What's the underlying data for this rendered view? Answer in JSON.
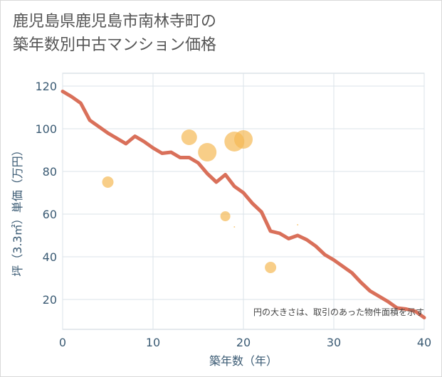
{
  "title_line1": "鹿児島県鹿児島市南林寺町の",
  "title_line2": "築年数別中古マンション価格",
  "chart_data": {
    "type": "scatter",
    "xlabel": "築年数（年）",
    "ylabel": "坪（3.3㎡）単価（万円）",
    "xlim": [
      0,
      40
    ],
    "ylim": [
      6,
      126
    ],
    "x_ticks": [
      "0",
      "10",
      "20",
      "30",
      "40"
    ],
    "y_ticks": [
      "20",
      "40",
      "60",
      "80",
      "100",
      "120"
    ],
    "x_tick_values": [
      0,
      10,
      20,
      30,
      40
    ],
    "y_tick_values": [
      20,
      40,
      60,
      80,
      100,
      120
    ],
    "grid": true,
    "annotation": "円の大きさは、取引のあった物件面積を示す",
    "line_color": "#d9705a",
    "bubble_color": "#f5b955",
    "trend_line": {
      "x": [
        0,
        1,
        2,
        3,
        4,
        5,
        6,
        7,
        8,
        9,
        10,
        11,
        12,
        13,
        14,
        15,
        16,
        17,
        18,
        19,
        20,
        21,
        22,
        23,
        24,
        25,
        26,
        27,
        28,
        29,
        30,
        31,
        32,
        33,
        34,
        35,
        36,
        37,
        38,
        39,
        40
      ],
      "y": [
        117.5,
        115,
        112,
        104,
        101,
        98,
        95.5,
        93,
        96.5,
        94,
        91,
        88.5,
        89,
        86.5,
        86.5,
        84,
        79,
        75,
        78.5,
        73,
        70,
        65,
        61,
        52,
        51,
        48.5,
        50,
        48,
        45,
        41,
        38.5,
        35.5,
        32.5,
        28,
        24,
        21.5,
        19,
        16,
        15.5,
        14.5,
        11.5
      ]
    },
    "bubbles": [
      {
        "x": 5,
        "y": 75,
        "size": 8
      },
      {
        "x": 14,
        "y": 96,
        "size": 11
      },
      {
        "x": 16,
        "y": 89,
        "size": 13
      },
      {
        "x": 18,
        "y": 59,
        "size": 7
      },
      {
        "x": 19,
        "y": 54,
        "size": 1
      },
      {
        "x": 19,
        "y": 94,
        "size": 14
      },
      {
        "x": 20,
        "y": 95,
        "size": 13
      },
      {
        "x": 23,
        "y": 35,
        "size": 8
      },
      {
        "x": 26,
        "y": 55,
        "size": 1
      }
    ]
  }
}
